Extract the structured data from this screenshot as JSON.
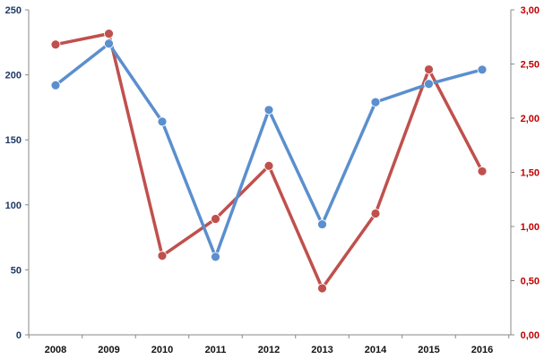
{
  "chart_data": {
    "type": "line",
    "title": "",
    "xlabel": "",
    "ylabel": "",
    "categories": [
      "2008",
      "2009",
      "2010",
      "2011",
      "2012",
      "2013",
      "2014",
      "2015",
      "2016"
    ],
    "series": [
      {
        "axis": "left",
        "color": "#5b8fce",
        "values": [
          192,
          224,
          164,
          60,
          173,
          85,
          179,
          193,
          204
        ]
      },
      {
        "axis": "right",
        "color": "#c0504d",
        "values": [
          2.68,
          2.78,
          0.73,
          1.07,
          1.56,
          0.43,
          1.12,
          2.45,
          1.51
        ]
      }
    ],
    "y_left": {
      "range": [
        0,
        250
      ],
      "ticks": [
        "0",
        "50",
        "100",
        "150",
        "200",
        "250"
      ],
      "tick_values": [
        0,
        50,
        100,
        150,
        200,
        250
      ],
      "color": "#1f3864"
    },
    "y_right": {
      "range": [
        0,
        3
      ],
      "ticks": [
        "0,00",
        "0,50",
        "1,00",
        "1,50",
        "2,00",
        "2,50",
        "3,00"
      ],
      "tick_values": [
        0,
        0.5,
        1,
        1.5,
        2,
        2.5,
        3
      ],
      "color": "#c00000"
    },
    "grid": false,
    "legend": "none"
  }
}
